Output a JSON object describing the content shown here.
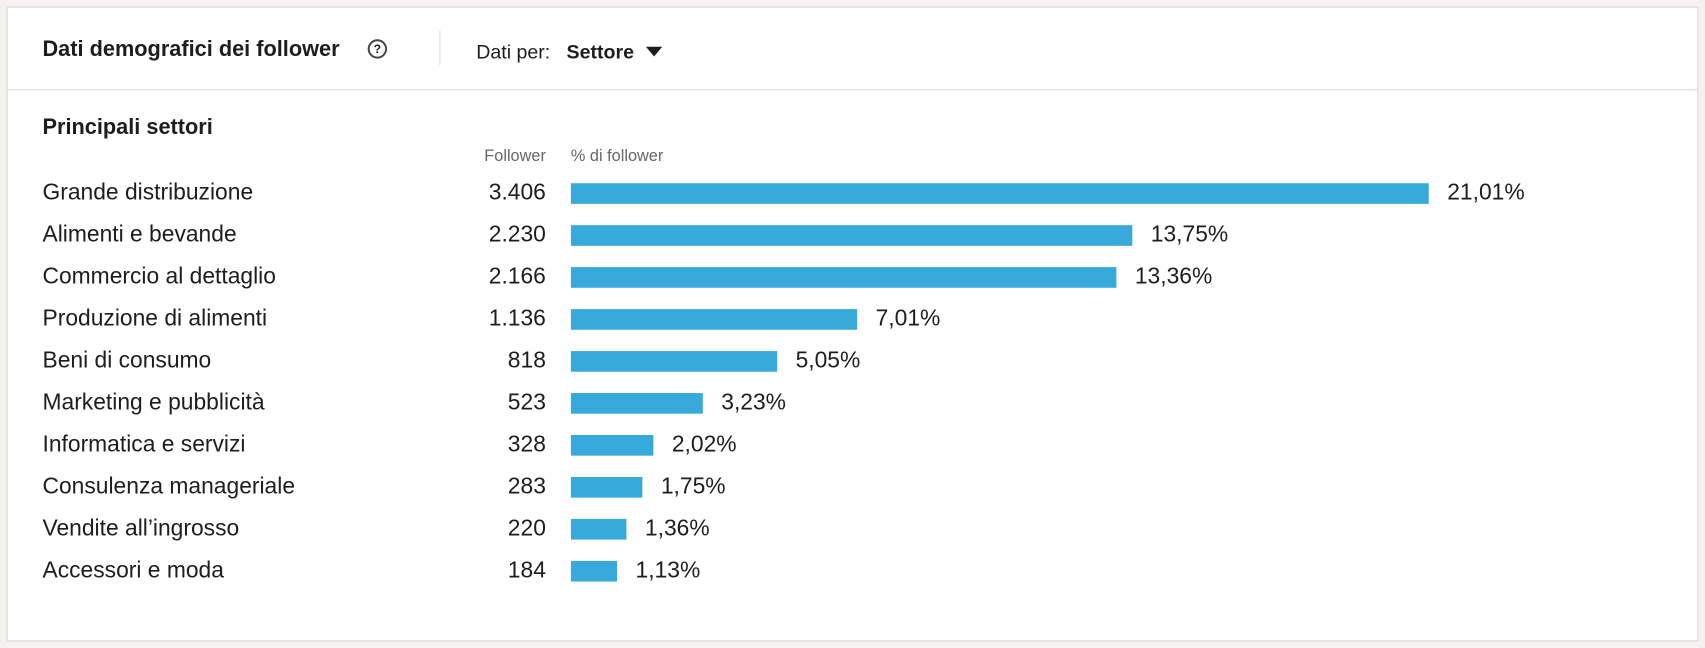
{
  "header": {
    "title": "Dati demografici dei follower",
    "filter_label": "Dati per:",
    "filter_value": "Settore"
  },
  "chart_data": {
    "type": "bar",
    "orientation": "horizontal",
    "title": "Principali settori",
    "count_header": "Follower",
    "value_header": "% di follower",
    "categories": [
      "Grande distribuzione",
      "Alimenti e bevande",
      "Commercio al dettaglio",
      "Produzione di alimenti",
      "Beni di consumo",
      "Marketing e pubblicità",
      "Informatica e servizi",
      "Consulenza manageriale",
      "Vendite all’ingrosso",
      "Accessori e moda"
    ],
    "counts": [
      "3.406",
      "2.230",
      "2.166",
      "1.136",
      "818",
      "523",
      "328",
      "283",
      "220",
      "184"
    ],
    "values": [
      21.01,
      13.75,
      13.36,
      7.01,
      5.05,
      3.23,
      2.02,
      1.75,
      1.36,
      1.13
    ],
    "value_labels": [
      "21,01%",
      "13,75%",
      "13,36%",
      "7,01%",
      "5,05%",
      "3,23%",
      "2,02%",
      "1,75%",
      "1,36%",
      "1,13%"
    ],
    "color": "#38a9db"
  }
}
